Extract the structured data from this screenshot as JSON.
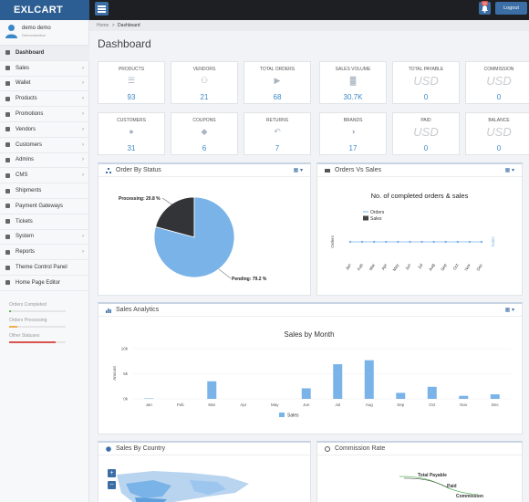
{
  "app": {
    "brand": "EXLCART"
  },
  "header": {
    "logout_label": "Logout",
    "notif_count": "99"
  },
  "user": {
    "name": "demo demo",
    "role": "Demonstration"
  },
  "sidebar": {
    "items": [
      {
        "label": "Dashboard",
        "icon": "dashboard-icon",
        "chevron": false,
        "active": true
      },
      {
        "label": "Sales",
        "icon": "cart-icon",
        "chevron": true
      },
      {
        "label": "Wallet",
        "icon": "wallet-icon",
        "chevron": true
      },
      {
        "label": "Products",
        "icon": "tag-icon",
        "chevron": true
      },
      {
        "label": "Promotions",
        "icon": "bullhorn-icon",
        "chevron": true
      },
      {
        "label": "Vendors",
        "icon": "vendor-icon",
        "chevron": true
      },
      {
        "label": "Customers",
        "icon": "user-icon",
        "chevron": true
      },
      {
        "label": "Admins",
        "icon": "users-icon",
        "chevron": true
      },
      {
        "label": "CMS",
        "icon": "monitor-icon",
        "chevron": true
      },
      {
        "label": "Shipments",
        "icon": "truck-icon",
        "chevron": false
      },
      {
        "label": "Payment Gateways",
        "icon": "credit-card-icon",
        "chevron": false
      },
      {
        "label": "Tickets",
        "icon": "wrench-icon",
        "chevron": false
      },
      {
        "label": "System",
        "icon": "gear-icon",
        "chevron": true
      },
      {
        "label": "Reports",
        "icon": "report-icon",
        "chevron": true
      },
      {
        "label": "Theme Control Panel",
        "icon": "image-icon",
        "chevron": false
      },
      {
        "label": "Home Page Editor",
        "icon": "pencil-icon",
        "chevron": false
      }
    ],
    "stats": [
      {
        "label": "Orders Completed",
        "value": "3%",
        "fraction": 0.03,
        "color": "#5cb85c"
      },
      {
        "label": "Orders Processing",
        "value": "15%",
        "fraction": 0.15,
        "color": "#f0ad4e"
      },
      {
        "label": "Other Statuses",
        "value": "82%",
        "fraction": 0.82,
        "color": "#d9534f"
      }
    ]
  },
  "breadcrumb": {
    "home": "Home",
    "sep": ">",
    "current": "Dashboard"
  },
  "page": {
    "title": "Dashboard"
  },
  "cards": [
    {
      "title": "Products",
      "value": "93",
      "icon": "list-icon"
    },
    {
      "title": "Vendors",
      "value": "21",
      "icon": "group-icon"
    },
    {
      "title": "Total Orders",
      "value": "68",
      "icon": "cart-icon"
    },
    {
      "title": "Sales Volume",
      "value": "30.7K",
      "icon": "bar-chart-icon"
    },
    {
      "title": "Total Payable",
      "value": "0",
      "icon": "usd-text",
      "usd": "USD"
    },
    {
      "title": "Commission",
      "value": "0",
      "icon": "usd-text",
      "usd": "USD"
    },
    {
      "title": "Customers",
      "value": "31",
      "icon": "user-icon"
    },
    {
      "title": "Coupons",
      "value": "6",
      "icon": "tags-icon"
    },
    {
      "title": "Returns",
      "value": "7",
      "icon": "reply-icon"
    },
    {
      "title": "Brands",
      "value": "17",
      "icon": "weibo-icon"
    },
    {
      "title": "Paid",
      "value": "0",
      "icon": "usd-text",
      "usd": "USD"
    },
    {
      "title": "Balance",
      "value": "0",
      "icon": "usd-text",
      "usd": "USD"
    }
  ],
  "panels": {
    "order_status": {
      "title": "Order By Status",
      "tool": "▦ ▾"
    },
    "orders_vs_sales": {
      "title": "Orders Vs Sales",
      "tool": "▦ ▾"
    },
    "sales_analytics": {
      "title": "Sales Analytics",
      "tool": "▦ ▾"
    },
    "sales_country": {
      "title": "Sales By Country",
      "zoom_in": "+",
      "zoom_out": "−"
    },
    "commission_rate": {
      "title": "Commission Rate"
    }
  },
  "chart_data": [
    {
      "type": "pie",
      "labels": [
        "Processing",
        "Pending"
      ],
      "values": [
        20.8,
        79.2
      ],
      "display": [
        "Processing: 20.8 %",
        "Pending: 79.2 %"
      ],
      "colors": [
        "#333438",
        "#7ab3e8"
      ]
    },
    {
      "type": "line",
      "title": "No. of completed orders & sales",
      "categories": [
        "Jan",
        "Feb",
        "Mar",
        "Apr",
        "May",
        "Jun",
        "Jul",
        "Aug",
        "Sep",
        "Oct",
        "Nov",
        "Dec"
      ],
      "series": [
        {
          "name": "Orders",
          "values": [
            0,
            0,
            0,
            0,
            0,
            0,
            0,
            0,
            0,
            0,
            0,
            0
          ],
          "color": "#7ab3e8"
        },
        {
          "name": "Sales",
          "values": [
            0,
            0,
            0,
            0,
            0,
            0,
            0,
            0,
            0,
            0,
            0,
            0
          ],
          "color": "#444"
        }
      ],
      "ylabel": "Orders",
      "y2label": "Sales"
    },
    {
      "type": "bar",
      "title": "Sales by Month",
      "categories": [
        "Jan",
        "Feb",
        "Mar",
        "Apr",
        "May",
        "Jun",
        "Jul",
        "Aug",
        "Sep",
        "Oct",
        "Nov",
        "Dec"
      ],
      "series": [
        {
          "name": "Sales",
          "values": [
            100,
            0,
            3500,
            0,
            0,
            2100,
            6900,
            7700,
            1200,
            2400,
            600,
            900
          ],
          "color": "#7ab3e8"
        }
      ],
      "ylabel": "Amount",
      "yticks": [
        "0k",
        "5k",
        "10k"
      ],
      "ylim": [
        0,
        10000
      ]
    }
  ],
  "commission_chart": {
    "labels": [
      "Total Payable",
      "Paid",
      "Commission"
    ]
  }
}
